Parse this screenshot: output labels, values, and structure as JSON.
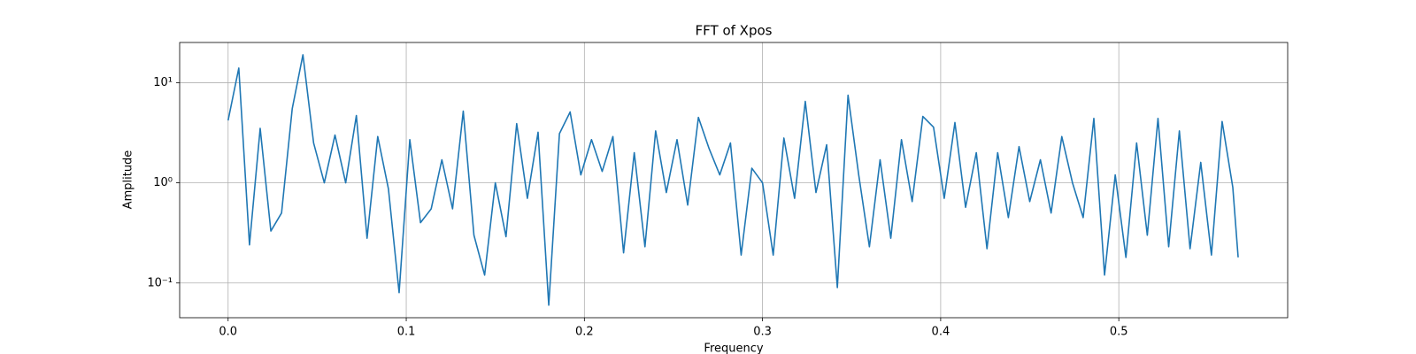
{
  "chart_data": {
    "type": "line",
    "title": "FFT of Xpos",
    "xlabel": "Frequency",
    "ylabel": "Amplitude",
    "yscale": "log",
    "grid": true,
    "xlim": [
      -0.0272,
      0.5948
    ],
    "xticks": [
      {
        "value": 0,
        "label": "0.0"
      },
      0.1,
      0.2,
      0.3,
      0.4,
      0.5
    ],
    "ylim": [
      0.045,
      25.2
    ],
    "yticks": [
      {
        "value": 0.1,
        "label": "10⁻¹"
      },
      {
        "value": 1,
        "label": "10⁰"
      },
      {
        "value": 10,
        "label": "10¹"
      }
    ],
    "x": [
      0,
      0.006,
      0.012,
      0.018,
      0.024,
      0.03,
      0.036,
      0.042,
      0.048,
      0.054,
      0.06,
      0.066,
      0.072,
      0.078,
      0.084,
      0.09,
      0.096,
      0.102,
      0.108,
      0.114,
      0.12,
      0.126,
      0.132,
      0.138,
      0.144,
      0.15,
      0.156,
      0.162,
      0.168,
      0.174,
      0.18,
      0.186,
      0.192,
      0.198,
      0.204,
      0.21,
      0.216,
      0.222,
      0.228,
      0.234,
      0.24,
      0.246,
      0.252,
      0.258,
      0.264,
      0.27,
      0.276,
      0.282,
      0.288,
      0.294,
      0.3,
      0.306,
      0.312,
      0.318,
      0.324,
      0.33,
      0.336,
      0.342,
      0.348,
      0.354,
      0.36,
      0.366,
      0.372,
      0.378,
      0.384,
      0.39,
      0.396,
      0.402,
      0.408,
      0.414,
      0.42,
      0.426,
      0.432,
      0.438,
      0.444,
      0.45,
      0.456,
      0.462,
      0.468,
      0.474,
      0.48,
      0.486,
      0.492,
      0.498,
      0.504,
      0.51,
      0.516,
      0.522,
      0.528,
      0.534,
      0.54,
      0.546,
      0.552,
      0.558,
      0.564,
      0.567
    ],
    "series": [
      {
        "color": "#1f77b4",
        "values": [
          4.2,
          14,
          0.24,
          3.5,
          0.33,
          0.5,
          5.5,
          19,
          2.5,
          1.0,
          3.0,
          1.0,
          4.7,
          0.28,
          2.9,
          0.87,
          0.08,
          2.7,
          0.4,
          0.55,
          1.7,
          0.55,
          5.2,
          0.3,
          0.12,
          1.0,
          0.29,
          3.9,
          0.7,
          3.2,
          0.06,
          3.1,
          5.1,
          1.2,
          2.7,
          1.3,
          2.9,
          0.2,
          2.0,
          0.23,
          3.3,
          0.8,
          2.7,
          0.6,
          4.5,
          2.2,
          1.2,
          2.5,
          0.19,
          1.4,
          1.0,
          0.19,
          2.8,
          0.7,
          6.5,
          0.8,
          2.4,
          0.09,
          7.5,
          1.2,
          0.23,
          1.7,
          0.28,
          2.7,
          0.65,
          4.6,
          3.6,
          0.7,
          4.0,
          0.57,
          2.0,
          0.22,
          2.0,
          0.45,
          2.3,
          0.65,
          1.7,
          0.5,
          2.9,
          1.0,
          0.45,
          4.4,
          0.12,
          1.2,
          0.18,
          2.5,
          0.3,
          4.4,
          0.23,
          3.3,
          0.22,
          1.6,
          0.19,
          4.1,
          0.9,
          0.18
        ]
      }
    ]
  }
}
